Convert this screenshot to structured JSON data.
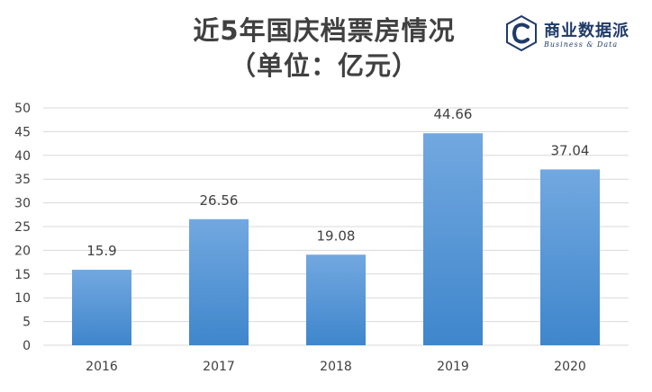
{
  "chart_data": {
    "type": "bar",
    "title_line_1": "近5年国庆档票房情况",
    "title_line_2": "（单位：亿元）",
    "categories": [
      "2016",
      "2017",
      "2018",
      "2019",
      "2020"
    ],
    "values": [
      15.9,
      26.56,
      19.08,
      44.66,
      37.04
    ],
    "data_labels": [
      "15.9",
      "26.56",
      "19.08",
      "44.66",
      "37.04"
    ],
    "ylim": [
      0,
      50
    ],
    "yticks": [
      0,
      5,
      10,
      15,
      20,
      25,
      30,
      35,
      40,
      45,
      50
    ],
    "grid": true,
    "legend": "none",
    "bar_color_top": "#72a8e0",
    "bar_color_bottom": "#3f86cc",
    "grid_color": "#d9d9d9"
  },
  "brand": {
    "name": "商业数据派",
    "subtitle": "Business & Data",
    "icon": "c-letter-icon",
    "color": "#1f3a68"
  }
}
